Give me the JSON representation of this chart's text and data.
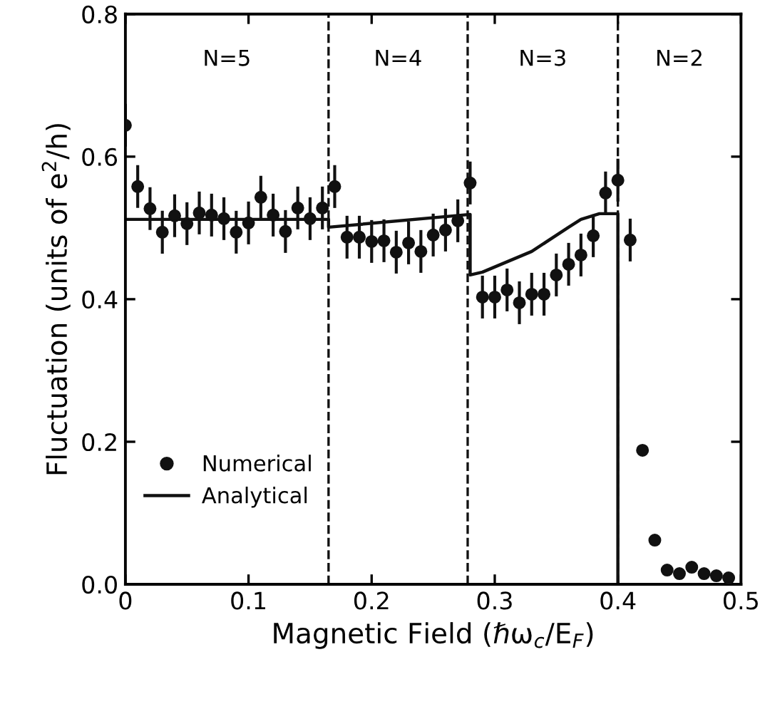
{
  "chart_data": {
    "type": "scatter",
    "xlabel": "Magnetic Field (ℏω$_{c}$/E$_{F}$)",
    "ylabel": "Fluctuation (units of e$^{2}$/h)",
    "xlim": [
      0,
      0.5
    ],
    "ylim": [
      0,
      0.8
    ],
    "xticks": [
      0,
      0.1,
      0.2,
      0.3,
      0.4,
      0.5
    ],
    "yticks": [
      {
        "value": 0,
        "label": "0.0"
      },
      0.2,
      0.4,
      0.6,
      0.8
    ],
    "legend": "bottom left",
    "grid": false,
    "series": [
      {
        "name": "Numerical",
        "marker": "circle",
        "color": "#111111",
        "x": [
          0,
          0.01,
          0.02,
          0.03,
          0.04,
          0.05,
          0.06,
          0.07,
          0.08,
          0.09,
          0.1,
          0.11,
          0.12,
          0.13,
          0.14,
          0.15,
          0.16,
          0.17,
          0.18,
          0.19,
          0.2,
          0.21,
          0.22,
          0.23,
          0.24,
          0.25,
          0.26,
          0.27,
          0.28,
          0.29,
          0.3,
          0.31,
          0.32,
          0.33,
          0.34,
          0.35,
          0.36,
          0.37,
          0.38,
          0.39,
          0.4,
          0.41,
          0.42,
          0.43,
          0.44,
          0.45,
          0.46,
          0.47,
          0.48,
          0.49
        ],
        "values": [
          0.644,
          0.558,
          0.527,
          0.494,
          0.517,
          0.506,
          0.521,
          0.518,
          0.513,
          0.494,
          0.507,
          0.543,
          0.518,
          0.495,
          0.528,
          0.513,
          0.528,
          0.558,
          0.487,
          0.487,
          0.481,
          0.482,
          0.466,
          0.479,
          0.467,
          0.49,
          0.497,
          0.51,
          0.563,
          0.403,
          0.403,
          0.413,
          0.395,
          0.407,
          0.407,
          0.434,
          0.449,
          0.462,
          0.489,
          0.549,
          0.567,
          0.483,
          0.188,
          0.062,
          0.02,
          0.015,
          0.024,
          0.015,
          0.012,
          0.009
        ],
        "errors": [
          0.03,
          0.03,
          0.03,
          0.03,
          0.03,
          0.03,
          0.03,
          0.03,
          0.03,
          0.03,
          0.03,
          0.03,
          0.03,
          0.03,
          0.03,
          0.03,
          0.03,
          0.03,
          0.03,
          0.03,
          0.03,
          0.03,
          0.03,
          0.03,
          0.03,
          0.03,
          0.03,
          0.03,
          0.03,
          0.03,
          0.03,
          0.03,
          0.03,
          0.03,
          0.03,
          0.03,
          0.03,
          0.03,
          0.03,
          0.03,
          0.03,
          0.03,
          null,
          null,
          null,
          null,
          null,
          null,
          null,
          null
        ]
      },
      {
        "name": "Analytical",
        "type": "line",
        "marker": "none",
        "line_style": "solid",
        "color": "#111111",
        "x": [
          0,
          0.165,
          0.165,
          0.28,
          0.28,
          0.29,
          0.33,
          0.36,
          0.37,
          0.385,
          0.4,
          0.4
        ],
        "values": [
          0.512,
          0.512,
          0.501,
          0.519,
          0.434,
          0.438,
          0.467,
          0.501,
          0.512,
          0.52,
          0.52,
          0
        ]
      }
    ],
    "ref_lines": [
      {
        "axis": "x",
        "value": 0.165,
        "color": "#111111",
        "line_style": "dashed"
      },
      {
        "axis": "x",
        "value": 0.278,
        "color": "#111111",
        "line_style": "dashed"
      },
      {
        "axis": "x",
        "value": 0.4,
        "color": "#111111",
        "line_style": "dashed"
      }
    ],
    "annotations": [
      "N=5",
      "N=4",
      "N=3",
      "N=2"
    ]
  }
}
